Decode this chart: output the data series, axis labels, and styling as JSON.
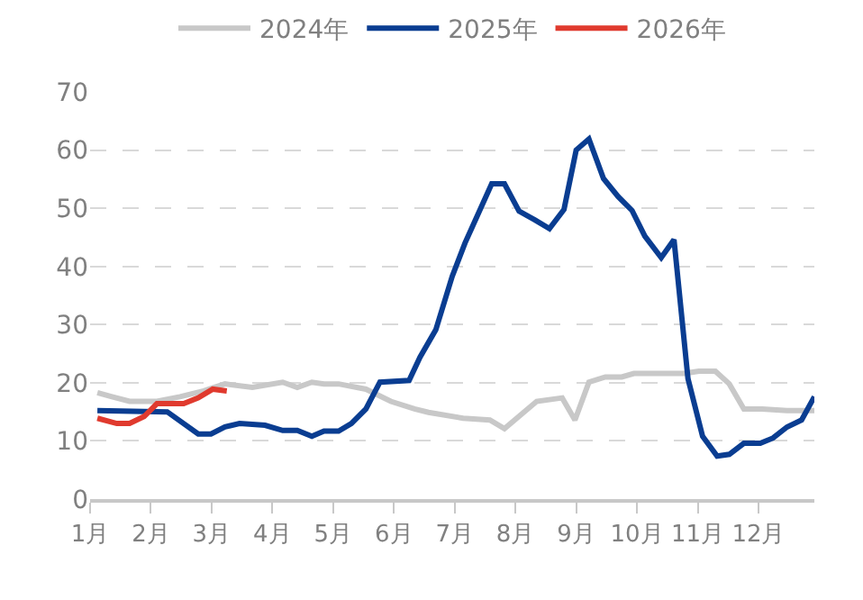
{
  "chart_data": {
    "type": "line",
    "legend": "top",
    "grid": "y",
    "marker": "none",
    "xlim": [
      1,
      12.92
    ],
    "xticks": [
      {
        "value": 1,
        "label": "1月"
      },
      {
        "value": 2,
        "label": "2月"
      },
      {
        "value": 3,
        "label": "3月"
      },
      {
        "value": 4,
        "label": "4月"
      },
      {
        "value": 5,
        "label": "5月"
      },
      {
        "value": 6,
        "label": "6月"
      },
      {
        "value": 7,
        "label": "7月"
      },
      {
        "value": 8,
        "label": "8月"
      },
      {
        "value": 9,
        "label": "9月"
      },
      {
        "value": 10,
        "label": "10月"
      },
      {
        "value": 11,
        "label": "11月"
      },
      {
        "value": 12,
        "label": "12月"
      }
    ],
    "ylim": [
      0,
      70
    ],
    "yticks": [
      0,
      10,
      20,
      30,
      40,
      50,
      60,
      70
    ],
    "series": [
      {
        "name": "2024年",
        "color": "#c8c8c8",
        "x": [
          1.12,
          1.36,
          1.65,
          2.1,
          2.48,
          2.87,
          3.22,
          3.67,
          4.17,
          4.41,
          4.65,
          4.85,
          5.09,
          5.54,
          5.95,
          6.34,
          6.57,
          7.14,
          7.58,
          7.82,
          8.35,
          8.77,
          8.98,
          9.21,
          9.48,
          9.75,
          9.95,
          10.4,
          10.78,
          11.02,
          11.29,
          11.52,
          11.76,
          12.06,
          12.47,
          12.92
        ],
        "values": [
          18.3,
          17.6,
          16.8,
          16.8,
          17.6,
          18.6,
          19.8,
          19.2,
          20.1,
          19.2,
          20.1,
          19.8,
          19.8,
          18.9,
          16.8,
          15.5,
          14.9,
          13.9,
          13.6,
          12.1,
          16.8,
          17.4,
          13.6,
          20.1,
          21,
          21,
          21.6,
          21.6,
          21.6,
          22,
          22,
          19.8,
          15.5,
          15.5,
          15.2,
          15.2
        ]
      },
      {
        "name": "2025年",
        "color": "#0a3d91",
        "x": [
          1.12,
          2.27,
          2.78,
          2.99,
          3.22,
          3.46,
          3.88,
          4.17,
          4.41,
          4.65,
          4.85,
          5.09,
          5.3,
          5.54,
          5.77,
          6.25,
          6.43,
          6.69,
          6.96,
          7.17,
          7.61,
          7.82,
          8.06,
          8.32,
          8.56,
          8.8,
          9.0,
          9.21,
          9.45,
          9.69,
          9.92,
          10.13,
          10.4,
          10.61,
          10.84,
          11.08,
          11.32,
          11.52,
          11.76,
          12.03,
          12.24,
          12.47,
          12.71,
          12.92
        ],
        "values": [
          15.2,
          15,
          11.2,
          11.2,
          12.4,
          13,
          12.7,
          11.8,
          11.8,
          10.8,
          11.7,
          11.7,
          13,
          15.5,
          20.1,
          20.4,
          24.4,
          29.1,
          38.3,
          44,
          54.2,
          54.2,
          49.5,
          48,
          46.5,
          49.8,
          60,
          61.9,
          55.1,
          52,
          49.6,
          45.2,
          41.5,
          44.6,
          20.7,
          10.8,
          7.4,
          7.7,
          9.6,
          9.6,
          10.5,
          12.4,
          13.6,
          17.6
        ]
      },
      {
        "name": "2026年",
        "color": "#e03a2e",
        "x": [
          1.12,
          1.44,
          1.65,
          1.89,
          2.1,
          2.54,
          2.78,
          3.02,
          3.25
        ],
        "values": [
          13.9,
          13,
          13,
          14.2,
          16.4,
          16.4,
          17.4,
          18.9,
          18.6
        ]
      }
    ]
  }
}
